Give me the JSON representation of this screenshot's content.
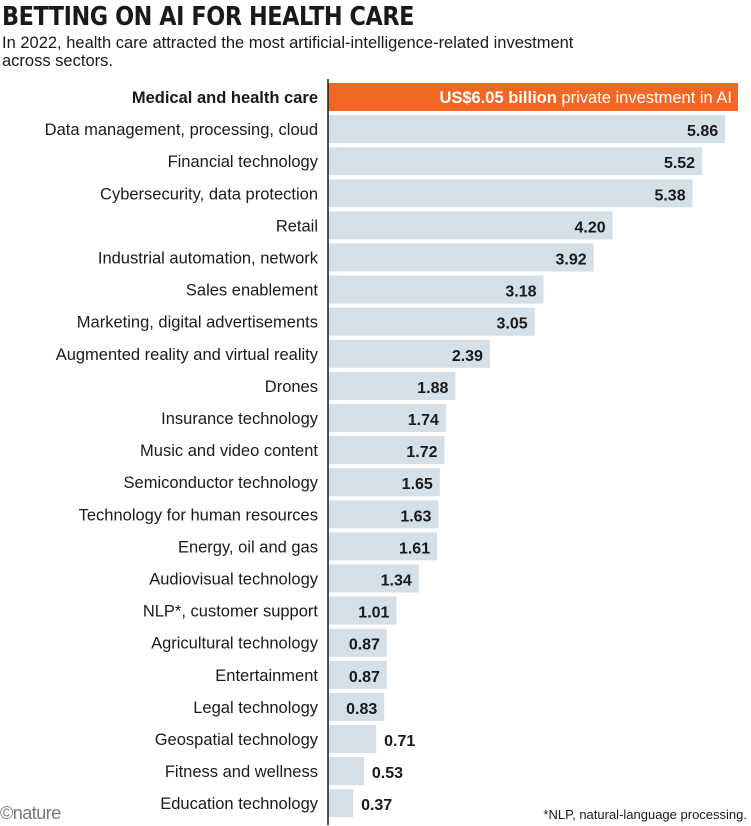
{
  "title": "BETTING ON AI FOR HEALTH CARE",
  "subtitle": "In 2022, health care attracted the most artificial-intelligence-related investment across sectors.",
  "logo": "©nature",
  "footnote": "*NLP, natural-language processing.",
  "colors": {
    "highlight_bar": "#f26822",
    "bar": "#d5dfe8",
    "axis": "#1a1a1a"
  },
  "chart_data": {
    "type": "bar",
    "orientation": "horizontal",
    "title": "BETTING ON AI FOR HEALTH CARE",
    "xlabel": "",
    "ylabel": "",
    "xlim": [
      0,
      6.05
    ],
    "unit": "US$ billion, private investment in AI",
    "highlight": {
      "category": "Medical and health care",
      "value": 6.05,
      "label_bold": "US$6.05 billion",
      "label_rest": "private investment in AI"
    },
    "categories": [
      "Medical and health care",
      "Data management, processing, cloud",
      "Financial technology",
      "Cybersecurity, data protection",
      "Retail",
      "Industrial automation, network",
      "Sales enablement",
      "Marketing, digital advertisements",
      "Augmented reality and virtual reality",
      "Drones",
      "Insurance technology",
      "Music and video content",
      "Semiconductor technology",
      "Technology for human resources",
      "Energy, oil and gas",
      "Audiovisual technology",
      "NLP*, customer support",
      "Agricultural technology",
      "Entertainment",
      "Legal technology",
      "Geospatial technology",
      "Fitness and wellness",
      "Education technology"
    ],
    "values": [
      6.05,
      5.86,
      5.52,
      5.38,
      4.2,
      3.92,
      3.18,
      3.05,
      2.39,
      1.88,
      1.74,
      1.72,
      1.65,
      1.63,
      1.61,
      1.34,
      1.01,
      0.87,
      0.87,
      0.83,
      0.71,
      0.53,
      0.37
    ],
    "value_labels": [
      "",
      "5.86",
      "5.52",
      "5.38",
      "4.20",
      "3.92",
      "3.18",
      "3.05",
      "2.39",
      "1.88",
      "1.74",
      "1.72",
      "1.65",
      "1.63",
      "1.61",
      "1.34",
      "1.01",
      "0.87",
      "0.87",
      "0.83",
      "0.71",
      "0.53",
      "0.37"
    ]
  }
}
